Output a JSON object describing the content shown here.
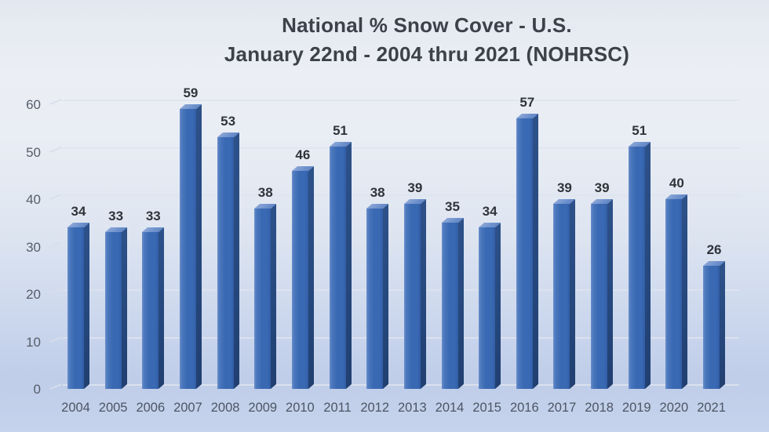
{
  "chart_data": {
    "type": "bar",
    "title": "National % Snow Cover - U.S.",
    "subtitle": "January 22nd - 2004 thru 2021 (NOHRSC)",
    "categories": [
      "2004",
      "2005",
      "2006",
      "2007",
      "2008",
      "2009",
      "2010",
      "2011",
      "2012",
      "2013",
      "2014",
      "2015",
      "2016",
      "2017",
      "2018",
      "2019",
      "2020",
      "2021"
    ],
    "values": [
      34,
      33,
      33,
      59,
      53,
      38,
      46,
      51,
      38,
      39,
      35,
      34,
      57,
      39,
      39,
      51,
      40,
      26
    ],
    "xlabel": "",
    "ylabel": "",
    "ylim": [
      0,
      60
    ],
    "yticks": [
      0,
      10,
      20,
      30,
      40,
      50,
      60
    ],
    "grid": "horizontal",
    "legend": "none",
    "style": "3d-bar",
    "colors": {
      "bar_front": "#3a69b3",
      "bar_side": "#25477c",
      "bar_top": "#7b9ad0",
      "title_text": "#3c414a",
      "axis_text": "#4d5564",
      "value_label_text": "#2f333a",
      "gridline": "#dee4ee",
      "background_top": "#ebeef4",
      "background_bottom": "#bfcde9"
    }
  }
}
